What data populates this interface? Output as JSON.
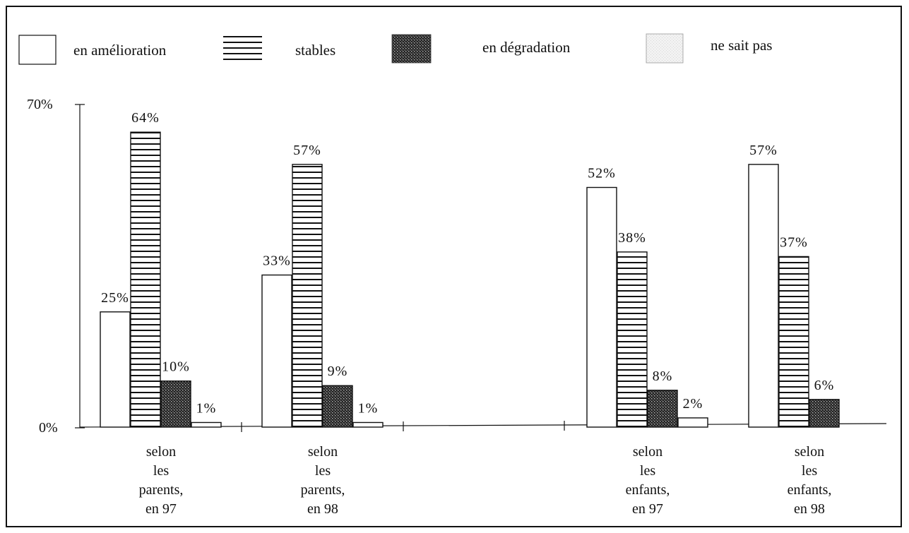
{
  "chart_data": {
    "type": "bar",
    "categories": [
      [
        "selon",
        "les",
        "parents,",
        "en 97"
      ],
      [
        "selon",
        "les",
        "parents,",
        "en 98"
      ],
      [
        "selon",
        "les",
        "enfants,",
        "en 97"
      ],
      [
        "selon",
        "les",
        "enfants,",
        "en 98"
      ]
    ],
    "series": [
      {
        "name": "en amélioration",
        "values": [
          25,
          33,
          52,
          57
        ],
        "labels": [
          "25%",
          "33%",
          "52%",
          "57%"
        ]
      },
      {
        "name": "stables",
        "values": [
          64,
          57,
          38,
          37
        ],
        "labels": [
          "64%",
          "57%",
          "38%",
          "37%"
        ]
      },
      {
        "name": "en dégradation",
        "values": [
          10,
          9,
          8,
          6
        ],
        "labels": [
          "10%",
          "9%",
          "8%",
          "6%"
        ]
      },
      {
        "name": "ne sait pas",
        "values": [
          1,
          1,
          2,
          0
        ],
        "labels": [
          "1%",
          "1%",
          "2%",
          ""
        ]
      }
    ],
    "y_ticks": [
      "70%",
      "0%"
    ],
    "ylim": [
      0,
      70
    ],
    "legend": "top",
    "grid": false
  }
}
